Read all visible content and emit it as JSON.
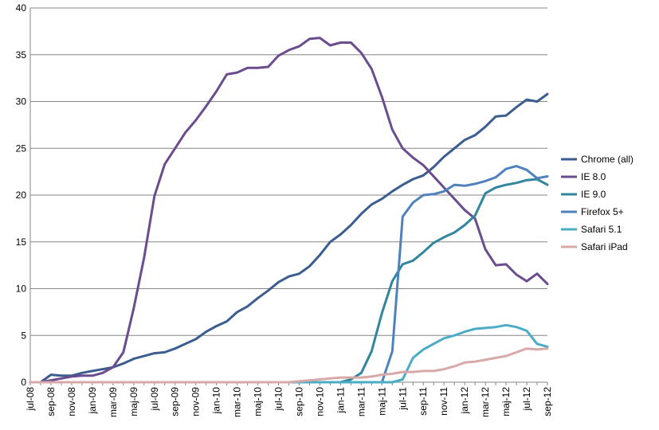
{
  "chart_data": {
    "type": "line",
    "title": "",
    "xlabel": "",
    "ylabel": "",
    "ylim": [
      0,
      40
    ],
    "yticks": [
      0,
      5,
      10,
      15,
      20,
      25,
      30,
      35,
      40
    ],
    "grid": "horizontal",
    "legend_position": "right",
    "categories": [
      "jul-08",
      "aug-08",
      "sep-08",
      "okt-08",
      "nov-08",
      "dec-08",
      "jan-09",
      "feb-09",
      "mar-09",
      "apr-09",
      "maj-09",
      "jun-09",
      "jul-09",
      "aug-09",
      "sep-09",
      "okt-09",
      "nov-09",
      "dec-09",
      "jan-10",
      "feb-10",
      "mar-10",
      "apr-10",
      "maj-10",
      "jun-10",
      "jul-10",
      "aug-10",
      "sep-10",
      "okt-10",
      "nov-10",
      "dec-10",
      "jan-11",
      "feb-11",
      "mar-11",
      "apr-11",
      "maj-11",
      "jun-11",
      "jul-11",
      "aug-11",
      "sep-11",
      "okt-11",
      "nov-11",
      "dec-11",
      "jan-12",
      "feb-12",
      "mar-12",
      "apr-12",
      "maj-12",
      "jun-12",
      "jul-12",
      "aug-12",
      "sep-12"
    ],
    "tick_labels": [
      "jul-08",
      "sep-08",
      "nov-08",
      "jan-09",
      "mar-09",
      "maj-09",
      "jul-09",
      "sep-09",
      "nov-09",
      "jan-10",
      "mar-10",
      "maj-10",
      "jul-10",
      "sep-10",
      "nov-10",
      "jan-11",
      "mar-11",
      "maj-11",
      "jul-11",
      "sep-11",
      "nov-11",
      "jan-12",
      "mar-12",
      "maj-12",
      "jul-12",
      "sep-12"
    ],
    "series": [
      {
        "name": "Chrome (all)",
        "color": "#3c5d8f",
        "values": [
          0,
          0,
          0.8,
          0.7,
          0.7,
          1.0,
          1.2,
          1.4,
          1.6,
          2.0,
          2.5,
          2.8,
          3.1,
          3.2,
          3.6,
          4.1,
          4.6,
          5.4,
          6.0,
          6.5,
          7.5,
          8.1,
          9.0,
          9.8,
          10.7,
          11.3,
          11.6,
          12.4,
          13.6,
          15.0,
          15.8,
          16.8,
          18.0,
          19.0,
          19.6,
          20.4,
          21.1,
          21.7,
          22.1,
          23.0,
          24.1,
          25.0,
          25.9,
          26.4,
          27.3,
          28.4,
          28.5,
          29.4,
          30.2,
          30.0,
          30.8
        ]
      },
      {
        "name": "IE 8.0",
        "color": "#6a4c8f",
        "values": [
          0,
          0,
          0.2,
          0.4,
          0.6,
          0.7,
          0.7,
          1.0,
          1.6,
          3.2,
          7.9,
          13.3,
          19.9,
          23.3,
          25.0,
          26.7,
          28.0,
          29.5,
          31.1,
          32.9,
          33.1,
          33.6,
          33.6,
          33.7,
          34.9,
          35.5,
          35.9,
          36.7,
          36.8,
          36.0,
          36.3,
          36.3,
          35.2,
          33.5,
          30.5,
          27.0,
          25.0,
          24.0,
          23.2,
          22.0,
          20.8,
          19.6,
          18.4,
          17.5,
          14.2,
          12.5,
          12.6,
          11.5,
          10.8,
          11.6,
          10.5
        ]
      },
      {
        "name": "IE 9.0",
        "color": "#31859c",
        "values": [
          0,
          0,
          0,
          0,
          0,
          0,
          0,
          0,
          0,
          0,
          0,
          0,
          0,
          0,
          0,
          0,
          0,
          0,
          0,
          0,
          0,
          0,
          0,
          0,
          0,
          0,
          0,
          0,
          0,
          0,
          0,
          0.3,
          1.0,
          3.3,
          7.4,
          10.8,
          12.6,
          13.0,
          13.9,
          14.9,
          15.5,
          16.0,
          16.8,
          17.8,
          20.2,
          20.8,
          21.1,
          21.3,
          21.6,
          21.7,
          21.1
        ]
      },
      {
        "name": "Firefox 5+",
        "color": "#4f81bd",
        "values": [
          0,
          0,
          0,
          0,
          0,
          0,
          0,
          0,
          0,
          0,
          0,
          0,
          0,
          0,
          0,
          0,
          0,
          0,
          0,
          0,
          0,
          0,
          0,
          0,
          0,
          0,
          0,
          0,
          0,
          0,
          0,
          0,
          0,
          0,
          0,
          3.3,
          17.7,
          19.2,
          20.0,
          20.1,
          20.4,
          21.1,
          21.0,
          21.2,
          21.5,
          21.9,
          22.8,
          23.1,
          22.7,
          21.8,
          22.0
        ]
      },
      {
        "name": "Safari 5.1",
        "color": "#4bacc6",
        "values": [
          0,
          0,
          0,
          0,
          0,
          0,
          0,
          0,
          0,
          0,
          0,
          0,
          0,
          0,
          0,
          0,
          0,
          0,
          0,
          0,
          0,
          0,
          0,
          0,
          0,
          0,
          0,
          0,
          0,
          0,
          0,
          0,
          0,
          0,
          0,
          0,
          0.3,
          2.6,
          3.5,
          4.1,
          4.7,
          5.0,
          5.4,
          5.7,
          5.8,
          5.9,
          6.1,
          5.9,
          5.5,
          4.1,
          3.8
        ]
      },
      {
        "name": "Safari iPad",
        "color": "#d8a9a9",
        "values": [
          0,
          0,
          0,
          0,
          0,
          0,
          0,
          0,
          0,
          0,
          0,
          0,
          0,
          0,
          0,
          0,
          0,
          0,
          0,
          0,
          0,
          0,
          0,
          0,
          0,
          0,
          0.1,
          0.2,
          0.3,
          0.4,
          0.5,
          0.5,
          0.5,
          0.6,
          0.8,
          0.9,
          1.1,
          1.1,
          1.2,
          1.2,
          1.4,
          1.7,
          2.1,
          2.2,
          2.4,
          2.6,
          2.8,
          3.2,
          3.6,
          3.5,
          3.6
        ]
      }
    ]
  }
}
